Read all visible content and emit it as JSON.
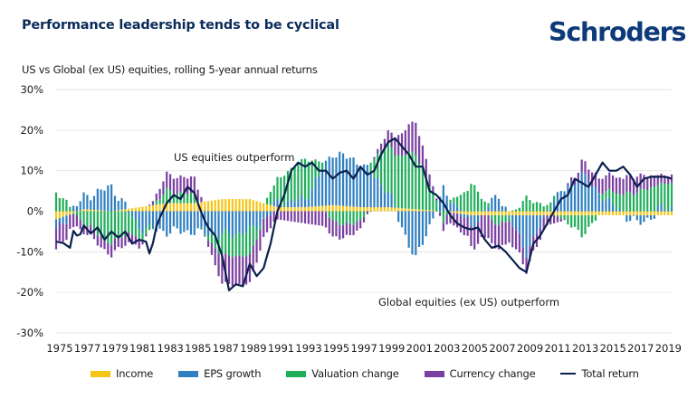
{
  "header": {
    "title": "Performance leadership tends to be cyclical",
    "logo_text": "Schroders",
    "subtitle": "US vs Global (ex US) equities, rolling 5-year annual returns"
  },
  "colors": {
    "income": "#f5c518",
    "eps": "#2f7fc1",
    "valuation": "#1fae5a",
    "currency": "#7a3fa0",
    "total": "#0b1f4d",
    "grid": "#e6e6e6",
    "title": "#0b2c5a",
    "logo": "#0e3a7a"
  },
  "chart_data": {
    "type": "bar",
    "stacked": true,
    "overlay_line": "Total return",
    "title": "Performance leadership tends to be cyclical",
    "subtitle": "US vs Global (ex US) equities, rolling 5-year annual returns",
    "xlabel": "",
    "ylabel": "",
    "ylim": [
      -30,
      30
    ],
    "yticks": [
      30,
      20,
      10,
      0,
      -10,
      -20,
      -30
    ],
    "ytick_labels": [
      "30%",
      "20%",
      "10%",
      "0%",
      "-10%",
      "-20%",
      "-30%"
    ],
    "x_range": [
      1975,
      2019.5
    ],
    "xtick_labels": [
      "1975",
      "1977",
      "1979",
      "1981",
      "1983",
      "1985",
      "1987",
      "1989",
      "1991",
      "1993",
      "1995",
      "1997",
      "1999",
      "2001",
      "2003",
      "2005",
      "2007",
      "2009",
      "2011",
      "2013",
      "2015",
      "2017",
      "2019"
    ],
    "grid": "horizontal",
    "legend_position": "bottom",
    "legend": [
      "Income",
      "EPS growth",
      "Valuation change",
      "Currency change",
      "Total return"
    ],
    "annotations": [
      {
        "text": "US equities outperform",
        "x": 1985.5,
        "y": 14.5
      },
      {
        "text": "Global equities (ex US) outperform",
        "x": 2002,
        "y": -23
      }
    ],
    "frequency": "quarterly",
    "total_return_yearly_anchor": {
      "x": [
        1975,
        1975.5,
        1976,
        1976.3,
        1976.6,
        1977,
        1977.5,
        1978,
        1978.5,
        1979,
        1979.5,
        1980,
        1980.5,
        1981,
        1981.5,
        1981.8,
        1982.3,
        1983,
        1983.5,
        1984,
        1984.5,
        1985,
        1985.3,
        1985.7,
        1986,
        1986.5,
        1987,
        1987.5,
        1988,
        1988.5,
        1989,
        1989.5,
        1990,
        1990.5,
        1991,
        1991.5,
        1992,
        1992.5,
        1993,
        1993.5,
        1994,
        1994.5,
        1995,
        1995.5,
        1996,
        1996.5,
        1997,
        1997.5,
        1998,
        1998.5,
        1999,
        1999.5,
        2000,
        2000.5,
        2001,
        2001.5,
        2002,
        2002.5,
        2003,
        2003.5,
        2004,
        2004.5,
        2005,
        2005.5,
        2006,
        2006.5,
        2007,
        2007.5,
        2008,
        2008.5,
        2009,
        2009.5,
        2010,
        2010.5,
        2011,
        2011.5,
        2012,
        2012.5,
        2013,
        2013.5,
        2014,
        2014.5,
        2015,
        2015.5,
        2016,
        2016.5,
        2017,
        2017.5,
        2018,
        2018.5,
        2019,
        2019.5
      ],
      "y": [
        -7.5,
        -7.8,
        -9,
        -4,
        -7,
        -3.5,
        -5.5,
        -4,
        -7,
        -5,
        -6.5,
        -5,
        -8,
        -7,
        -7.5,
        -11,
        -3,
        2,
        4,
        3,
        6,
        4.5,
        1.5,
        -2,
        -4,
        -6,
        -11,
        -19.5,
        -18,
        -18.5,
        -13,
        -16,
        -14,
        -8,
        0,
        4,
        10,
        12,
        11,
        12,
        10,
        10,
        8,
        9.5,
        10,
        8,
        11,
        9,
        10,
        14,
        17,
        18,
        16,
        14,
        11,
        11,
        5,
        4,
        2,
        -1,
        -3,
        -4,
        -4.5,
        -4,
        -7,
        -9,
        -8.5,
        -10,
        -12,
        -14,
        -15,
        -8,
        -6,
        -3,
        0,
        3,
        4,
        8,
        7,
        6,
        9,
        12,
        10,
        10,
        11,
        9,
        6,
        8,
        8.5,
        8.5,
        8.5,
        8
      ]
    },
    "component_profile_by_year": {
      "note": "approximate stacked composition (pct points): [income, eps, valuation, currency]",
      "1975": [
        -2,
        -3,
        5,
        -5
      ],
      "1977": [
        0.5,
        3,
        -3,
        -2
      ],
      "1979": [
        0,
        6,
        -8,
        -3
      ],
      "1981": [
        1,
        -4,
        -3,
        -2
      ],
      "1983": [
        2,
        -5,
        3,
        4
      ],
      "1985": [
        2,
        -5,
        2,
        4
      ],
      "1987": [
        3,
        -6,
        -5,
        -7
      ],
      "1989": [
        3,
        -5,
        -6,
        -7
      ],
      "1991": [
        1,
        1,
        6,
        -2
      ],
      "1993": [
        1,
        2,
        10,
        -3
      ],
      "1995": [
        1.5,
        13,
        -3,
        -4
      ],
      "1997": [
        1,
        11,
        -3,
        -2
      ],
      "1999": [
        1,
        4,
        12,
        3
      ],
      "2001": [
        0.5,
        -12,
        14,
        8
      ],
      "2003": [
        0,
        5,
        -2,
        -2
      ],
      "2005": [
        -1,
        -3,
        7,
        -5
      ],
      "2007": [
        -1,
        4,
        -3,
        -6
      ],
      "2009": [
        -1,
        -9,
        3,
        -4
      ],
      "2011": [
        -1,
        3,
        1,
        -2
      ],
      "2013": [
        -1,
        9,
        -5,
        3
      ],
      "2015": [
        -1,
        2,
        3,
        4
      ],
      "2017": [
        -1,
        -2,
        5,
        4
      ],
      "2019": [
        -1,
        1,
        6,
        2
      ]
    }
  }
}
